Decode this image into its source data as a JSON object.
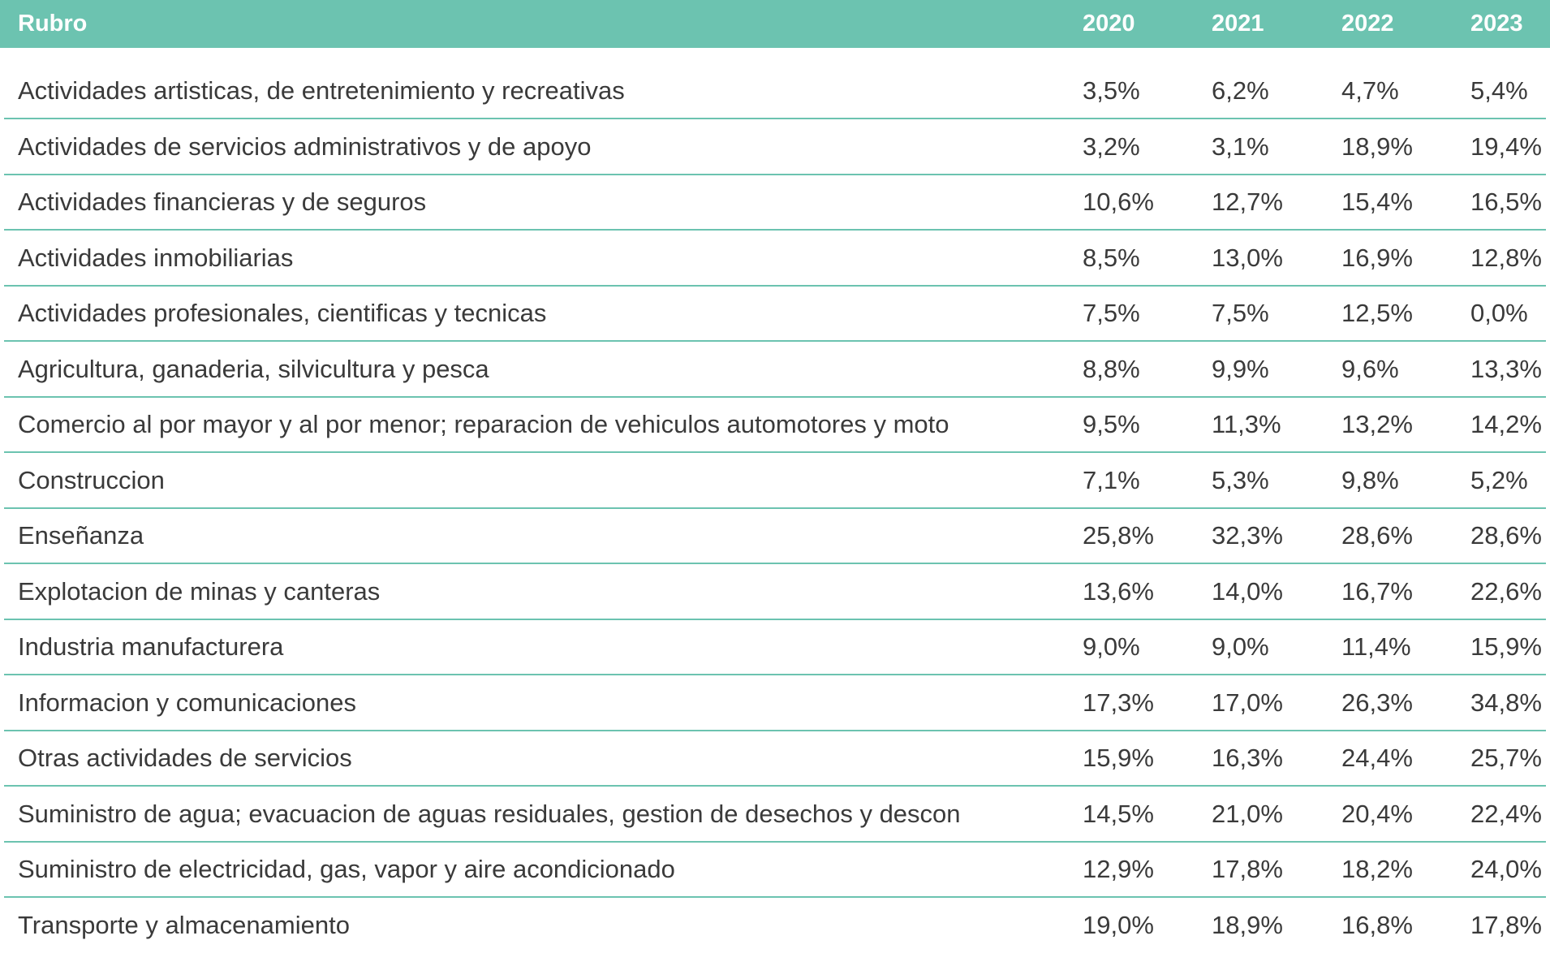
{
  "table": {
    "header": [
      "Rubro",
      "2020",
      "2021",
      "2022",
      "2023"
    ],
    "rows": [
      [
        "Actividades artisticas, de entretenimiento y recreativas",
        "3,5%",
        "6,2%",
        "4,7%",
        "5,4%"
      ],
      [
        "Actividades de servicios administrativos y de apoyo",
        "3,2%",
        "3,1%",
        "18,9%",
        "19,4%"
      ],
      [
        "Actividades financieras y de seguros",
        "10,6%",
        "12,7%",
        "15,4%",
        "16,5%"
      ],
      [
        "Actividades inmobiliarias",
        "8,5%",
        "13,0%",
        "16,9%",
        "12,8%"
      ],
      [
        "Actividades profesionales, cientificas y tecnicas",
        "7,5%",
        "7,5%",
        "12,5%",
        "0,0%"
      ],
      [
        "Agricultura, ganaderia, silvicultura y pesca",
        "8,8%",
        "9,9%",
        "9,6%",
        "13,3%"
      ],
      [
        "Comercio al por mayor y al por menor; reparacion de vehiculos automotores y moto",
        "9,5%",
        "11,3%",
        "13,2%",
        "14,2%"
      ],
      [
        "Construccion",
        "7,1%",
        "5,3%",
        "9,8%",
        "5,2%"
      ],
      [
        "Enseñanza",
        "25,8%",
        "32,3%",
        "28,6%",
        "28,6%"
      ],
      [
        "Explotacion de minas y canteras",
        "13,6%",
        "14,0%",
        "16,7%",
        "22,6%"
      ],
      [
        "Industria manufacturera",
        "9,0%",
        "9,0%",
        "11,4%",
        "15,9%"
      ],
      [
        "Informacion y comunicaciones",
        "17,3%",
        "17,0%",
        "26,3%",
        "34,8%"
      ],
      [
        "Otras actividades de servicios",
        "15,9%",
        "16,3%",
        "24,4%",
        "25,7%"
      ],
      [
        "Suministro de agua; evacuacion de aguas residuales, gestion de desechos y descon",
        "14,5%",
        "21,0%",
        "20,4%",
        "22,4%"
      ],
      [
        "Suministro de electricidad, gas, vapor y aire acondicionado",
        "12,9%",
        "17,8%",
        "18,2%",
        "24,0%"
      ],
      [
        "Transporte y almacenamiento",
        "19,0%",
        "18,9%",
        "16,8%",
        "17,8%"
      ]
    ]
  }
}
